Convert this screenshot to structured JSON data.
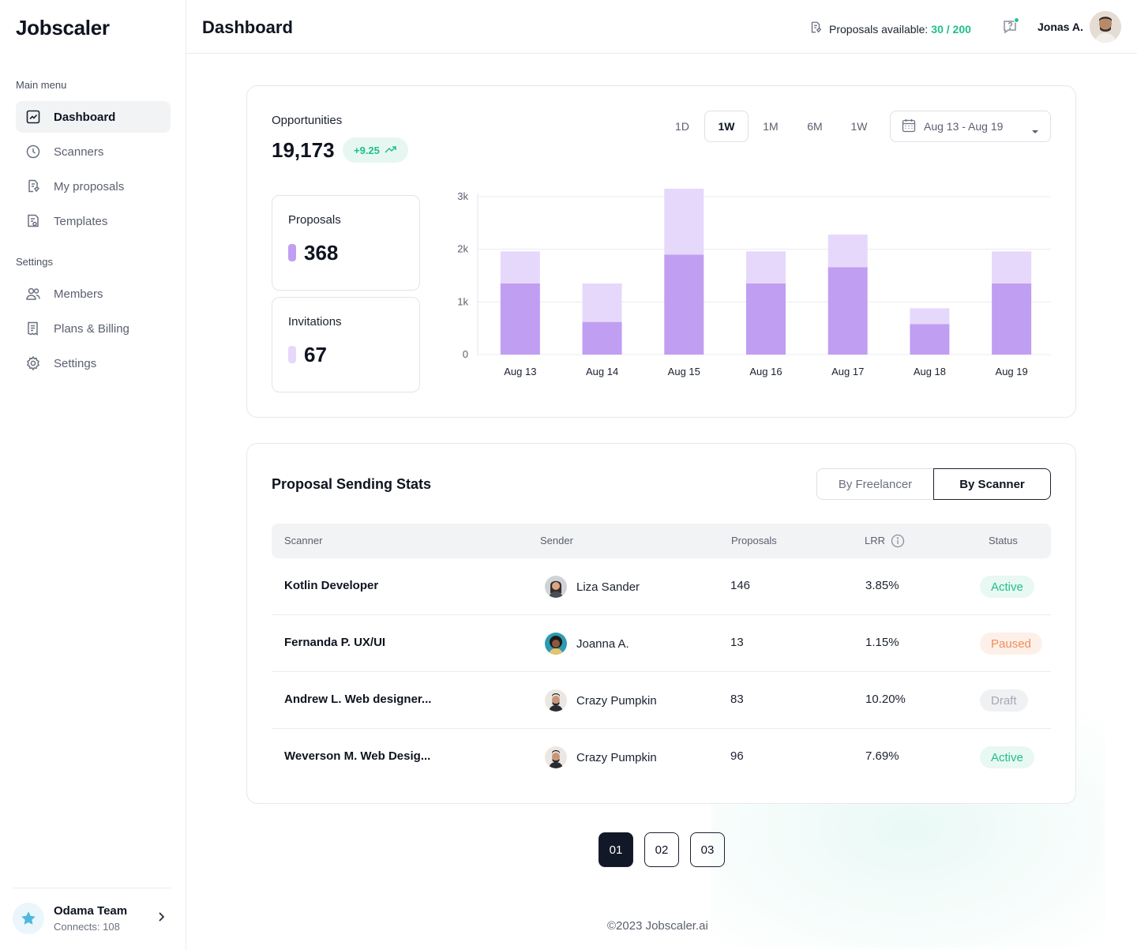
{
  "app": {
    "logo": "Jobscaler"
  },
  "sidebar": {
    "main_menu_title": "Main menu",
    "main_items": [
      {
        "label": "Dashboard",
        "icon": "chart-icon",
        "active": true
      },
      {
        "label": "Scanners",
        "icon": "clock-icon"
      },
      {
        "label": "My proposals",
        "icon": "proposal-icon"
      },
      {
        "label": "Templates",
        "icon": "template-icon"
      }
    ],
    "settings_title": "Settings",
    "settings_items": [
      {
        "label": "Members",
        "icon": "members-icon"
      },
      {
        "label": "Plans & Billing",
        "icon": "billing-icon"
      },
      {
        "label": "Settings",
        "icon": "gear-icon"
      }
    ],
    "team": {
      "name": "Odama Team",
      "sub": "Connects: 108"
    }
  },
  "header": {
    "title": "Dashboard",
    "proposals_label": "Proposals available:",
    "proposals_value": "30 / 200",
    "user_name": "Jonas A."
  },
  "opportunities": {
    "label": "Opportunities",
    "value": "19,173",
    "change": "+9.25",
    "ranges": [
      "1D",
      "1W",
      "1M",
      "6M",
      "1W"
    ],
    "active_range_index": 1,
    "date_range": "Aug 13 - Aug 19",
    "proposals": {
      "label": "Proposals",
      "value": "368",
      "color": "#c09ef2"
    },
    "invitations": {
      "label": "Invitations",
      "value": "67",
      "color": "#e6d8fb"
    }
  },
  "chart_data": {
    "type": "bar",
    "stacked": true,
    "categories": [
      "Aug 13",
      "Aug 14",
      "Aug 15",
      "Aug 16",
      "Aug 17",
      "Aug 18",
      "Aug 19"
    ],
    "series": [
      {
        "name": "Proposals",
        "values": [
          1350,
          620,
          1900,
          1350,
          1660,
          580,
          1350
        ],
        "color": "#c09ef2"
      },
      {
        "name": "Invitations",
        "values": [
          610,
          730,
          1350,
          610,
          620,
          300,
          610
        ],
        "color": "#e6d8fb"
      }
    ],
    "yticks": [
      "0",
      "1k",
      "2k",
      "3k"
    ],
    "ylim": [
      0,
      3000
    ],
    "grid": true
  },
  "stats": {
    "title": "Proposal Sending Stats",
    "toggle": {
      "off": "By Freelancer",
      "on": "By Scanner"
    },
    "columns": [
      "Scanner",
      "Sender",
      "Proposals",
      "LRR",
      "Status"
    ],
    "rows": [
      {
        "scanner": "Kotlin Developer",
        "sender": "Liza Sander",
        "proposals": "146",
        "lrr": "3.85%",
        "status": "Active",
        "status_kind": "active"
      },
      {
        "scanner": "Fernanda P. UX/UI",
        "sender": "Joanna A.",
        "proposals": "13",
        "lrr": "1.15%",
        "status": "Paused",
        "status_kind": "paused"
      },
      {
        "scanner": "Andrew L. Web designer...",
        "sender": "Crazy Pumpkin",
        "proposals": "83",
        "lrr": "10.20%",
        "status": "Draft",
        "status_kind": "draft"
      },
      {
        "scanner": "Weverson M. Web Desig...",
        "sender": "Crazy Pumpkin",
        "proposals": "96",
        "lrr": "7.69%",
        "status": "Active",
        "status_kind": "active"
      }
    ]
  },
  "pagination": {
    "pages": [
      "01",
      "02",
      "03"
    ],
    "active_index": 0
  },
  "footer": {
    "text": "©2023 Jobscaler.ai"
  }
}
